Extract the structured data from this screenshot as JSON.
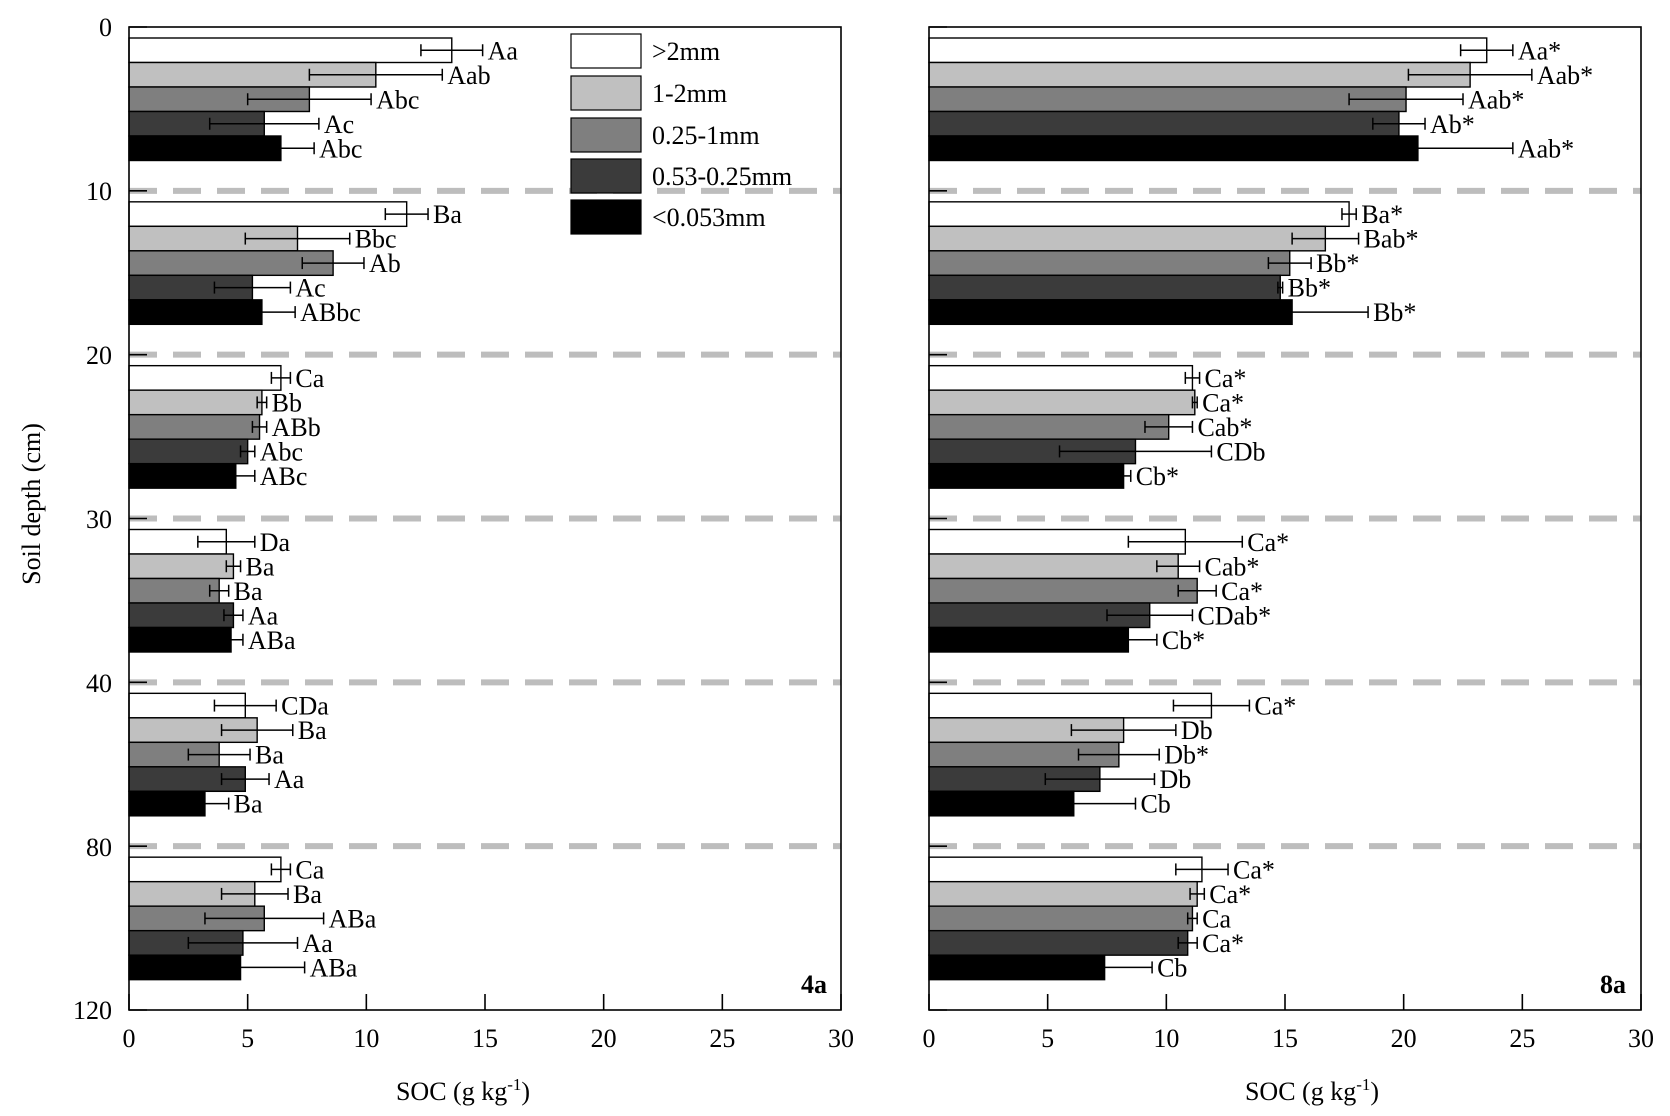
{
  "y_axis": {
    "label": "Soil depth (cm)",
    "ticks": [
      "0",
      "10",
      "20",
      "30",
      "40",
      "80",
      "120"
    ]
  },
  "legend": {
    "placement": "top-center of left panel",
    "items": [
      ">2mm",
      "1-2mm",
      "0.25-1mm",
      "0.53-0.25mm",
      "<0.053mm"
    ]
  },
  "colors": [
    "#ffffff",
    "#c0c0c0",
    "#7f7f7f",
    "#3b3b3b",
    "#000000"
  ],
  "chart_data": [
    {
      "type": "bar",
      "orientation": "horizontal",
      "panel_label": "4a",
      "xlabel": "SOC (g kg",
      "xlabel_sup": "-1",
      "xlabel_end": ")",
      "ylabel": "Soil depth (cm)",
      "xlim": [
        0,
        30
      ],
      "xticks": [
        "0",
        "5",
        "10",
        "15",
        "20",
        "25",
        "30"
      ],
      "grid": "dashed separators between depth layers",
      "categories": [
        "0-10",
        "10-20",
        "20-30",
        "30-40",
        "40-80",
        "80-120"
      ],
      "series": [
        {
          "name": ">2mm",
          "values": [
            13.6,
            11.7,
            6.4,
            4.1,
            4.9,
            6.4
          ],
          "errors": [
            1.3,
            0.9,
            0.4,
            1.2,
            1.3,
            0.4
          ],
          "labels": [
            "Aa",
            "Ba",
            "Ca",
            "Da",
            "CDa",
            "Ca"
          ]
        },
        {
          "name": "1-2mm",
          "values": [
            10.4,
            7.1,
            5.6,
            4.4,
            5.4,
            5.3
          ],
          "errors": [
            2.8,
            2.2,
            0.2,
            0.3,
            1.5,
            1.4
          ],
          "labels": [
            "Aab",
            "Bbc",
            "Bb",
            "Ba",
            "Ba",
            "Ba"
          ]
        },
        {
          "name": "0.25-1mm",
          "values": [
            7.6,
            8.6,
            5.5,
            3.8,
            3.8,
            5.7
          ],
          "errors": [
            2.6,
            1.3,
            0.3,
            0.4,
            1.3,
            2.5
          ],
          "labels": [
            "Abc",
            "Ab",
            "ABb",
            "Ba",
            "Ba",
            "ABa"
          ]
        },
        {
          "name": "0.53-0.25mm",
          "values": [
            5.7,
            5.2,
            5.0,
            4.4,
            4.9,
            4.8
          ],
          "errors": [
            2.3,
            1.6,
            0.3,
            0.4,
            1.0,
            2.3
          ],
          "labels": [
            "Ac",
            "Ac",
            "Abc",
            "Aa",
            "Aa",
            "Aa"
          ]
        },
        {
          "name": "<0.053mm",
          "values": [
            6.4,
            5.6,
            4.5,
            4.3,
            3.2,
            4.7
          ],
          "errors": [
            1.4,
            1.4,
            0.8,
            0.5,
            1.0,
            2.7
          ],
          "labels": [
            "Abc",
            "ABbc",
            "ABc",
            "ABa",
            "Ba",
            "ABa"
          ]
        }
      ]
    },
    {
      "type": "bar",
      "orientation": "horizontal",
      "panel_label": "8a",
      "xlabel": "SOC (g kg",
      "xlabel_sup": "-1",
      "xlabel_end": ")",
      "xlim": [
        0,
        30
      ],
      "xticks": [
        "0",
        "5",
        "10",
        "15",
        "20",
        "25",
        "30"
      ],
      "grid": "dashed separators between depth layers",
      "categories": [
        "0-10",
        "10-20",
        "20-30",
        "30-40",
        "40-80",
        "80-120"
      ],
      "series": [
        {
          "name": ">2mm",
          "values": [
            23.5,
            17.7,
            11.1,
            10.8,
            11.9,
            11.5
          ],
          "errors": [
            1.1,
            0.3,
            0.3,
            2.4,
            1.6,
            1.1
          ],
          "labels": [
            "Aa*",
            "Ba*",
            "Ca*",
            "Ca*",
            "Ca*",
            "Ca*"
          ]
        },
        {
          "name": "1-2mm",
          "values": [
            22.8,
            16.7,
            11.2,
            10.5,
            8.2,
            11.3
          ],
          "errors": [
            2.6,
            1.4,
            0.1,
            0.9,
            2.2,
            0.3
          ],
          "labels": [
            "Aab*",
            "Bab*",
            "Ca*",
            "Cab*",
            "Db",
            "Ca*"
          ]
        },
        {
          "name": "0.25-1mm",
          "values": [
            20.1,
            15.2,
            10.1,
            11.3,
            8.0,
            11.1
          ],
          "errors": [
            2.4,
            0.9,
            1.0,
            0.8,
            1.7,
            0.2
          ],
          "labels": [
            "Aab*",
            "Bb*",
            "Cab*",
            "Ca*",
            "Db*",
            "Ca"
          ]
        },
        {
          "name": "0.53-0.25mm",
          "values": [
            19.8,
            14.8,
            8.7,
            9.3,
            7.2,
            10.9
          ],
          "errors": [
            1.1,
            0.1,
            3.2,
            1.8,
            2.3,
            0.4
          ],
          "labels": [
            "Ab*",
            "Bb*",
            "CDb",
            "CDab*",
            "Db",
            "Ca*"
          ]
        },
        {
          "name": "<0.053mm",
          "values": [
            20.6,
            15.3,
            8.2,
            8.4,
            6.1,
            7.4
          ],
          "errors": [
            4.0,
            3.2,
            0.3,
            1.2,
            2.6,
            2.0
          ],
          "labels": [
            "Aab*",
            "Bb*",
            "Cb*",
            "Cb*",
            "Cb",
            "Cb"
          ]
        }
      ]
    }
  ]
}
